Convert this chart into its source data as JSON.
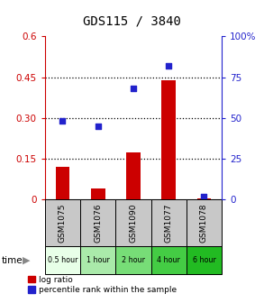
{
  "title": "GDS115 / 3840",
  "samples": [
    "GSM1075",
    "GSM1076",
    "GSM1090",
    "GSM1077",
    "GSM1078"
  ],
  "time_labels": [
    "0.5 hour",
    "1 hour",
    "2 hour",
    "4 hour",
    "6 hour"
  ],
  "log_ratio": [
    0.12,
    0.04,
    0.175,
    0.44,
    0.005
  ],
  "percentile_pct": [
    48,
    45,
    68,
    82,
    2
  ],
  "bar_color": "#cc0000",
  "scatter_color": "#2222cc",
  "ylim_left": [
    0,
    0.6
  ],
  "ylim_right": [
    0,
    100
  ],
  "yticks_left": [
    0,
    0.15,
    0.3,
    0.45,
    0.6
  ],
  "ytick_labels_left": [
    "0",
    "0.15",
    "0.30",
    "0.45",
    "0.6"
  ],
  "yticks_right": [
    0,
    25,
    50,
    75,
    100
  ],
  "ytick_labels_right": [
    "0",
    "25",
    "50",
    "75",
    "100%"
  ],
  "time_bg_colors": [
    "#e8ffe8",
    "#aaeaaa",
    "#77dd77",
    "#44cc44",
    "#22bb22"
  ],
  "sample_bg_color": "#c8c8c8",
  "title_fontsize": 10,
  "axis_color_left": "#cc0000",
  "axis_color_right": "#2222cc",
  "bar_width": 0.4,
  "scatter_size": 22
}
